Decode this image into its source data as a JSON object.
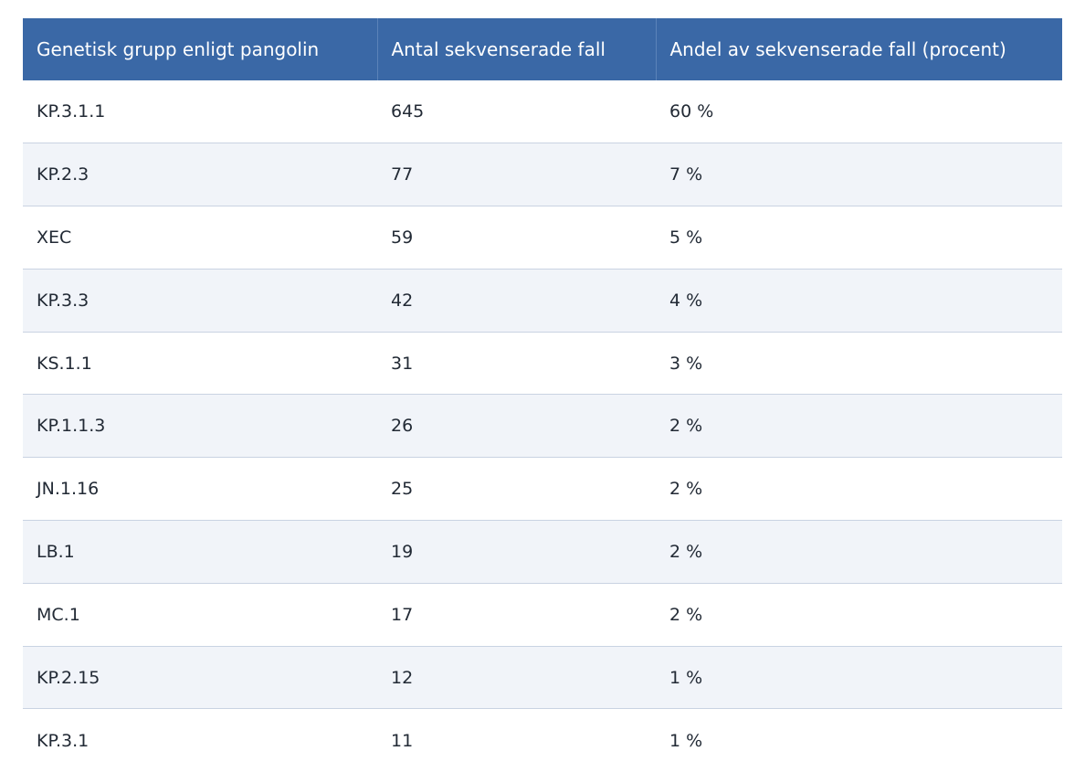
{
  "table": {
    "headers": [
      "Genetisk grupp enligt pangolin",
      "Antal sekvenserade fall",
      "Andel av sekvenserade fall (procent)"
    ],
    "rows": [
      [
        "KP.3.1.1",
        "645",
        "60 %"
      ],
      [
        "KP.2.3",
        "77",
        "7 %"
      ],
      [
        "XEC",
        "59",
        "5 %"
      ],
      [
        "KP.3.3",
        "42",
        "4 %"
      ],
      [
        "KS.1.1",
        "31",
        "3 %"
      ],
      [
        "KP.1.1.3",
        "26",
        "2 %"
      ],
      [
        "JN.1.16",
        "25",
        "2 %"
      ],
      [
        "LB.1",
        "19",
        "2 %"
      ],
      [
        "MC.1",
        "17",
        "2 %"
      ],
      [
        "KP.2.15",
        "12",
        "1 %"
      ],
      [
        "KP.3.1",
        "11",
        "1 %"
      ]
    ]
  },
  "colors": {
    "header_bg": "#3a68a6",
    "header_text": "#ffffff",
    "row_alt_bg": "#f1f4f9",
    "row_border": "#c9d3e2",
    "cell_text": "#222a35"
  }
}
